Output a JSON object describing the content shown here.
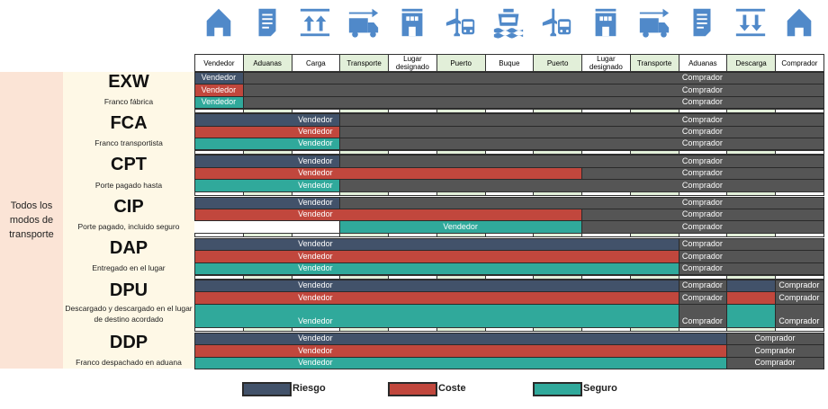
{
  "colors": {
    "riesgo": "#42526a",
    "coste": "#c1473d",
    "seguro": "#30a99b",
    "buyer": "#555555",
    "green": "#e2efd9",
    "icon": "#5089c9"
  },
  "icons": [
    "house-icon",
    "document-icon",
    "upload-icon",
    "truck-icon",
    "building-icon",
    "plane-truck-icon",
    "ship-icon",
    "plane-truck-icon",
    "building-icon",
    "truck-icon",
    "document-icon",
    "download-icon",
    "house-icon"
  ],
  "columns": [
    "Vendedor",
    "Aduanas",
    "Carga",
    "Transporte",
    "Lugar designado",
    "Puerto",
    "Buque",
    "Puerto",
    "Lugar designado",
    "Transporte",
    "Aduanas",
    "Descarga",
    "Comprador"
  ],
  "modes_label": "Todos los modos de transporte",
  "incoterms": [
    {
      "code": "EXW",
      "name": "Franco fábrica",
      "rows": [
        {
          "type": "riesgo",
          "segments": [
            {
              "party": "seller",
              "from": 1,
              "to": 1,
              "label": "Vendedor"
            },
            {
              "party": "buyer",
              "from": 2,
              "to": 13,
              "label": "Comprador"
            }
          ]
        },
        {
          "type": "coste",
          "segments": [
            {
              "party": "seller",
              "from": 1,
              "to": 1,
              "label": "Vendedor"
            },
            {
              "party": "buyer",
              "from": 2,
              "to": 13,
              "label": "Comprador"
            }
          ]
        },
        {
          "type": "seguro",
          "segments": [
            {
              "party": "seller",
              "from": 1,
              "to": 1,
              "label": "Vendedor"
            },
            {
              "party": "buyer",
              "from": 2,
              "to": 13,
              "label": "Comprador"
            }
          ]
        }
      ]
    },
    {
      "code": "FCA",
      "name": "Franco transportista",
      "rows": [
        {
          "type": "riesgo",
          "segments": [
            {
              "party": "seller",
              "from": 1,
              "to": 3,
              "label": "Vendedor"
            },
            {
              "party": "buyer",
              "from": 4,
              "to": 13,
              "label": "Comprador"
            }
          ]
        },
        {
          "type": "coste",
          "segments": [
            {
              "party": "seller",
              "from": 1,
              "to": 3,
              "label": "Vendedor"
            },
            {
              "party": "buyer",
              "from": 4,
              "to": 13,
              "label": "Comprador"
            }
          ]
        },
        {
          "type": "seguro",
          "segments": [
            {
              "party": "seller",
              "from": 1,
              "to": 3,
              "label": "Vendedor"
            },
            {
              "party": "buyer",
              "from": 4,
              "to": 13,
              "label": "Comprador"
            }
          ]
        }
      ]
    },
    {
      "code": "CPT",
      "name": "Porte pagado hasta",
      "rows": [
        {
          "type": "riesgo",
          "segments": [
            {
              "party": "seller",
              "from": 1,
              "to": 3,
              "label": "Vendedor"
            },
            {
              "party": "buyer",
              "from": 4,
              "to": 13,
              "label": "Comprador"
            }
          ]
        },
        {
          "type": "coste",
          "segments": [
            {
              "party": "seller",
              "from": 1,
              "to": 8,
              "label": "Vendedor"
            },
            {
              "party": "buyer",
              "from": 9,
              "to": 13,
              "label": "Comprador"
            }
          ]
        },
        {
          "type": "seguro",
          "segments": [
            {
              "party": "seller",
              "from": 1,
              "to": 3,
              "label": "Vendedor"
            },
            {
              "party": "buyer",
              "from": 4,
              "to": 13,
              "label": "Comprador"
            }
          ]
        }
      ]
    },
    {
      "code": "CIP",
      "name": "Porte pagado, incluido seguro",
      "rows": [
        {
          "type": "riesgo",
          "segments": [
            {
              "party": "seller",
              "from": 1,
              "to": 3,
              "label": "Vendedor"
            },
            {
              "party": "buyer",
              "from": 4,
              "to": 13,
              "label": "Comprador"
            }
          ]
        },
        {
          "type": "coste",
          "segments": [
            {
              "party": "seller",
              "from": 1,
              "to": 8,
              "label": "Vendedor"
            },
            {
              "party": "buyer",
              "from": 9,
              "to": 13,
              "label": "Comprador"
            }
          ]
        },
        {
          "type": "seguro",
          "segments": [
            {
              "party": "none",
              "from": 1,
              "to": 3,
              "label": ""
            },
            {
              "party": "seller",
              "from": 4,
              "to": 8,
              "label": "Vendedor"
            },
            {
              "party": "buyer",
              "from": 9,
              "to": 13,
              "label": "Comprador"
            }
          ]
        }
      ]
    },
    {
      "code": "DAP",
      "name": "Entregado en el lugar",
      "rows": [
        {
          "type": "riesgo",
          "segments": [
            {
              "party": "seller",
              "from": 1,
              "to": 10,
              "label": "Vendedor"
            },
            {
              "party": "buyer",
              "from": 11,
              "to": 13,
              "label": "Comprador"
            }
          ]
        },
        {
          "type": "coste",
          "segments": [
            {
              "party": "seller",
              "from": 1,
              "to": 10,
              "label": "Vendedor"
            },
            {
              "party": "buyer",
              "from": 11,
              "to": 13,
              "label": "Comprador"
            }
          ]
        },
        {
          "type": "seguro",
          "segments": [
            {
              "party": "seller",
              "from": 1,
              "to": 10,
              "label": "Vendedor"
            },
            {
              "party": "buyer",
              "from": 11,
              "to": 13,
              "label": "Comprador"
            }
          ]
        }
      ]
    },
    {
      "code": "DPU",
      "name": "Descargado y descargado en el lugar de destino acordado",
      "rows": [
        {
          "type": "riesgo",
          "segments": [
            {
              "party": "seller",
              "from": 1,
              "to": 10,
              "label": "Vendedor"
            },
            {
              "party": "buyer",
              "from": 11,
              "to": 11,
              "label": "Comprador"
            },
            {
              "party": "seller",
              "from": 12,
              "to": 12,
              "label": ""
            },
            {
              "party": "buyer",
              "from": 13,
              "to": 13,
              "label": "Comprador"
            }
          ]
        },
        {
          "type": "coste",
          "segments": [
            {
              "party": "seller",
              "from": 1,
              "to": 10,
              "label": "Vendedor"
            },
            {
              "party": "buyer",
              "from": 11,
              "to": 11,
              "label": "Comprador"
            },
            {
              "party": "seller",
              "from": 12,
              "to": 12,
              "label": ""
            },
            {
              "party": "buyer",
              "from": 13,
              "to": 13,
              "label": "Comprador"
            }
          ]
        },
        {
          "type": "seguro",
          "segments": [
            {
              "party": "seller",
              "from": 1,
              "to": 10,
              "label": "Vendedor"
            },
            {
              "party": "buyer",
              "from": 11,
              "to": 11,
              "label": "Comprador"
            },
            {
              "party": "seller",
              "from": 12,
              "to": 12,
              "label": ""
            },
            {
              "party": "buyer",
              "from": 13,
              "to": 13,
              "label": "Comprador"
            }
          ]
        }
      ]
    },
    {
      "code": "DDP",
      "name": "Franco despachado en aduana",
      "rows": [
        {
          "type": "riesgo",
          "segments": [
            {
              "party": "seller",
              "from": 1,
              "to": 11,
              "label": "Vendedor"
            },
            {
              "party": "buyer",
              "from": 12,
              "to": 13,
              "label": "Comprador"
            }
          ]
        },
        {
          "type": "coste",
          "segments": [
            {
              "party": "seller",
              "from": 1,
              "to": 11,
              "label": "Vendedor"
            },
            {
              "party": "buyer",
              "from": 12,
              "to": 13,
              "label": "Comprador"
            }
          ]
        },
        {
          "type": "seguro",
          "segments": [
            {
              "party": "seller",
              "from": 1,
              "to": 11,
              "label": "Vendedor"
            },
            {
              "party": "buyer",
              "from": 12,
              "to": 13,
              "label": "Comprador"
            }
          ]
        }
      ]
    }
  ],
  "legend": [
    {
      "type": "riesgo",
      "label": "Riesgo"
    },
    {
      "type": "coste",
      "label": "Coste"
    },
    {
      "type": "seguro",
      "label": "Seguro"
    }
  ]
}
